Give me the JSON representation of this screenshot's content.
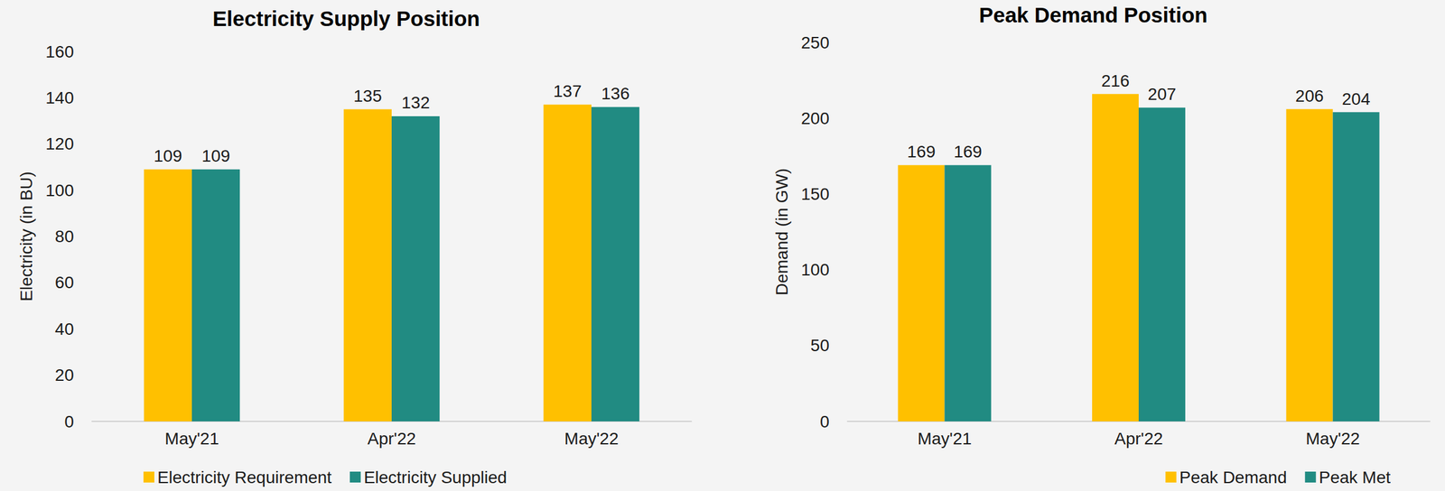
{
  "chart_data": [
    {
      "type": "bar",
      "title": "Electricity Supply Position",
      "y_label": "Electricity (in BU)",
      "categories": [
        "May'21",
        "Apr'22",
        "May'22"
      ],
      "series": [
        {
          "name": "Electricity Requirement",
          "color": "#ffc000",
          "values": [
            109,
            135,
            137
          ]
        },
        {
          "name": "Electricity Supplied",
          "color": "#218b82",
          "values": [
            109,
            132,
            136
          ]
        }
      ],
      "ylim": [
        0,
        160
      ],
      "yticks": [
        0,
        20,
        40,
        60,
        80,
        100,
        120,
        140,
        160
      ],
      "grid": false,
      "data_labels": true,
      "legend": "bottom-left"
    },
    {
      "type": "bar",
      "title": "Peak Demand Position",
      "y_label": "Demand (in GW)",
      "categories": [
        "May'21",
        "Apr'22",
        "May'22"
      ],
      "series": [
        {
          "name": "Peak Demand",
          "color": "#ffc000",
          "values": [
            169,
            216,
            206
          ]
        },
        {
          "name": "Peak Met",
          "color": "#218b82",
          "values": [
            169,
            207,
            204
          ]
        }
      ],
      "ylim": [
        0,
        250
      ],
      "yticks": [
        0,
        50,
        100,
        150,
        200,
        250
      ],
      "grid": false,
      "data_labels": true,
      "legend": "bottom-right"
    }
  ]
}
